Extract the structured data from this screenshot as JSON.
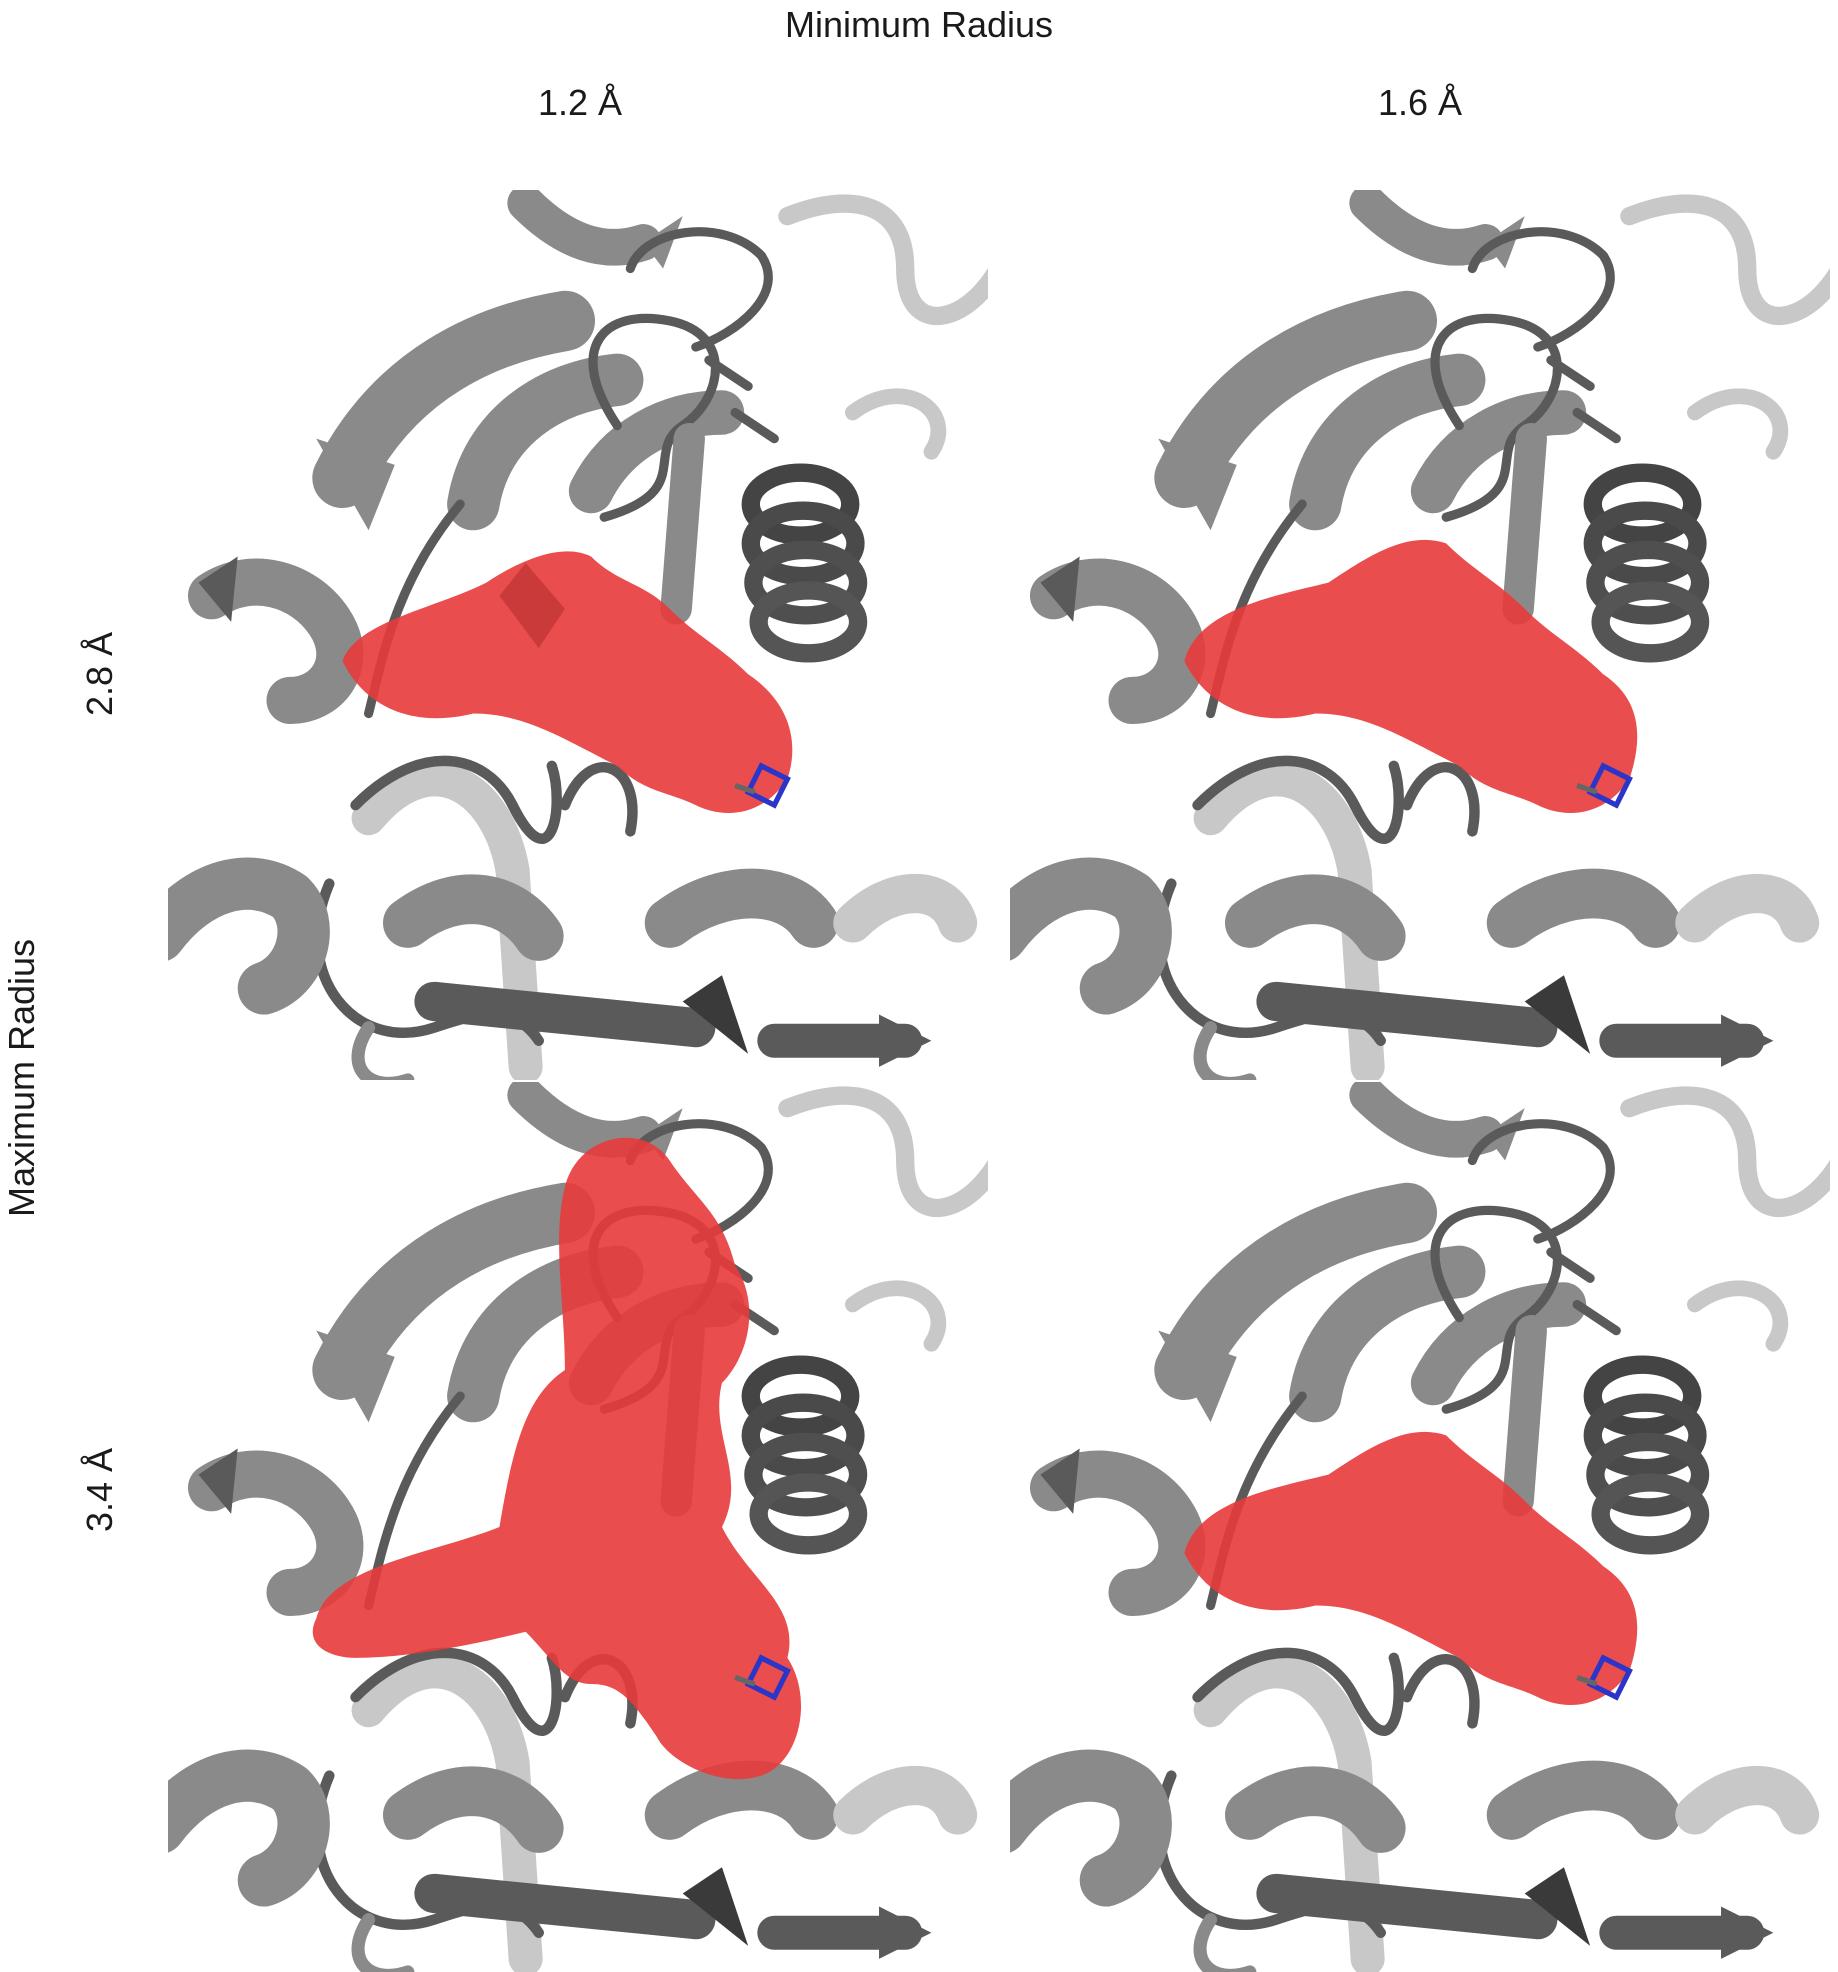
{
  "axes": {
    "column_title": "Minimum Radius",
    "row_title": "Maximum Radius",
    "columns": [
      "1.2 Å",
      "1.6 Å"
    ],
    "rows": [
      "2.8 Å",
      "3.4 Å"
    ]
  },
  "panels": [
    {
      "row": "2.8 Å",
      "col": "1.2 Å",
      "cavity": "moderate"
    },
    {
      "row": "2.8 Å",
      "col": "1.6 Å",
      "cavity": "smooth"
    },
    {
      "row": "3.4 Å",
      "col": "1.2 Å",
      "cavity": "large"
    },
    {
      "row": "3.4 Å",
      "col": "1.6 Å",
      "cavity": "smooth"
    }
  ],
  "colors": {
    "cavity": "#e83a3a",
    "cavity_dark": "#b81c1c",
    "protein_dark": "#5a5a5a",
    "protein_mid": "#8a8a8a",
    "protein_light": "#c8c8c8",
    "ligand_blue": "#2b35c8"
  }
}
